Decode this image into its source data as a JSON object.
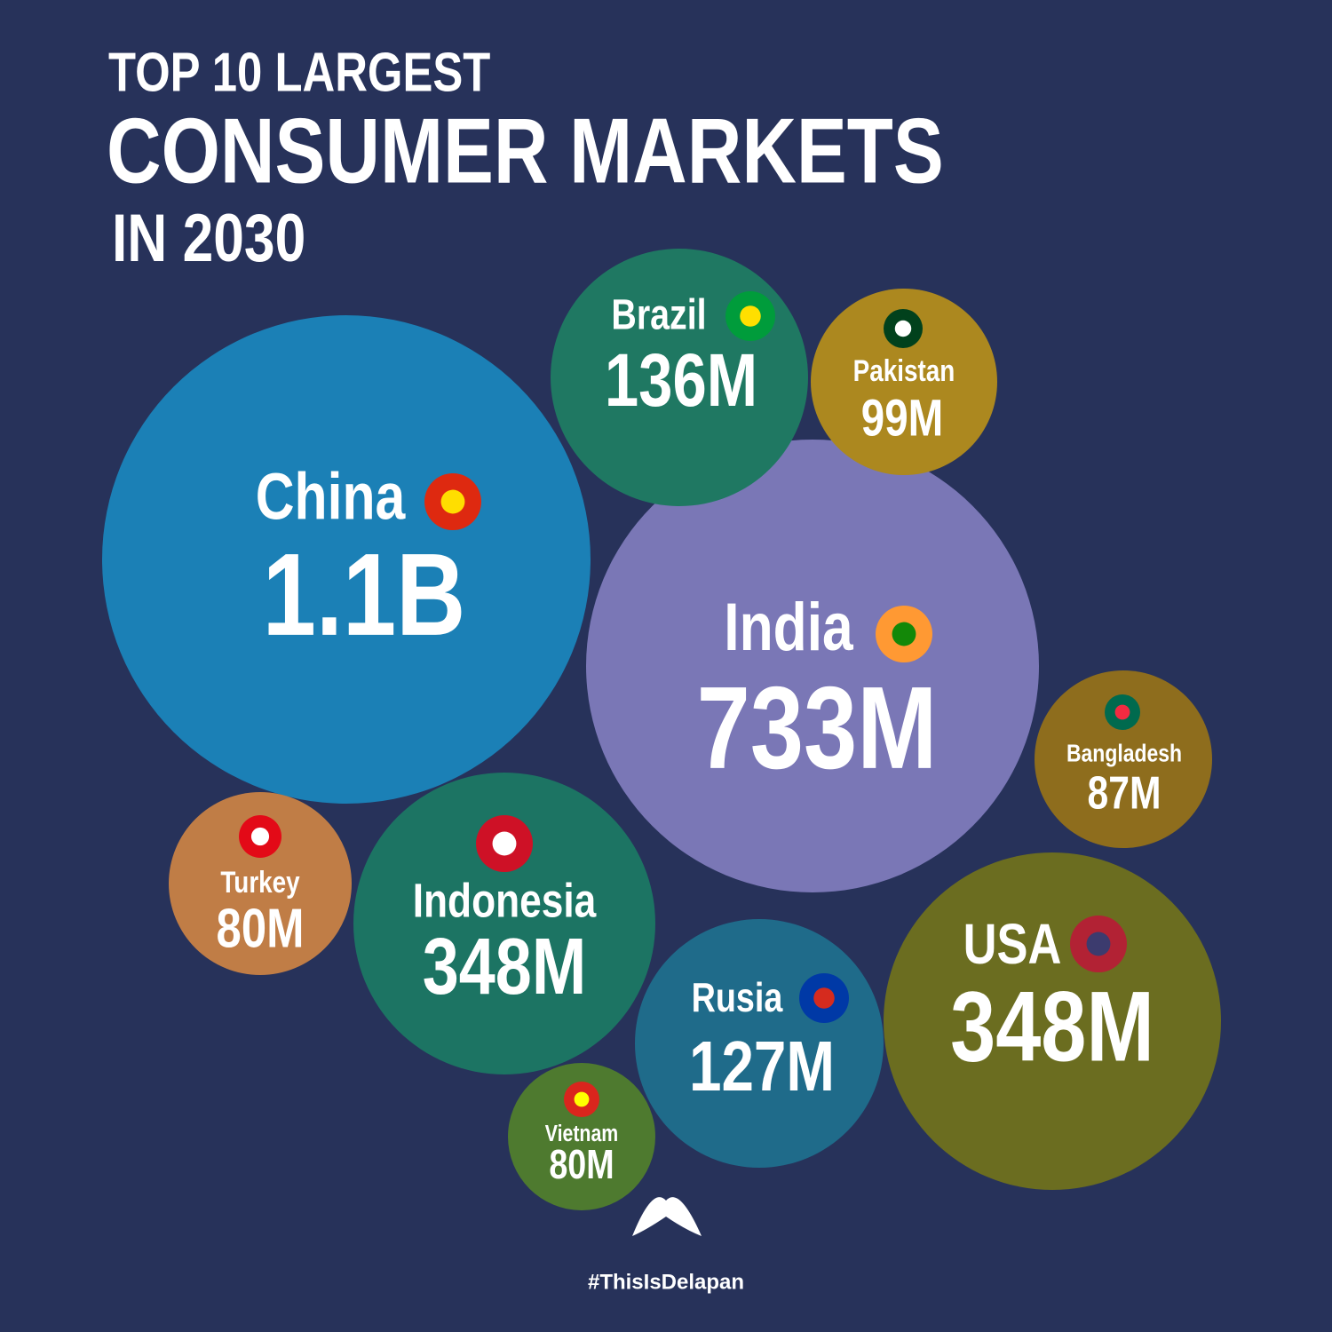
{
  "chart_data": {
    "type": "bubble",
    "title": [
      "TOP 10 LARGEST",
      "CONSUMER MARKETS",
      "IN 2030"
    ],
    "categories": [
      "China",
      "India",
      "Brazil",
      "Pakistan",
      "Bangladesh",
      "Turkey",
      "Indonesia",
      "USA",
      "Rusia",
      "Vietnam"
    ],
    "values": [
      1100000000,
      733000000,
      136000000,
      99000000,
      87000000,
      80000000,
      348000000,
      348000000,
      127000000,
      80000000
    ],
    "value_labels": [
      "1.1B",
      "733M",
      "136M",
      "99M",
      "87M",
      "80M",
      "348M",
      "348M",
      "127M",
      "80M"
    ],
    "colors": [
      "#1b80b6",
      "#7a77b6",
      "#1f7862",
      "#ac881f",
      "#8e6d1d",
      "#c07d46",
      "#1c7463",
      "#6b6d20",
      "#1f6b8a",
      "#4e7a2f"
    ],
    "footer": "#ThisIsDelapan"
  }
}
